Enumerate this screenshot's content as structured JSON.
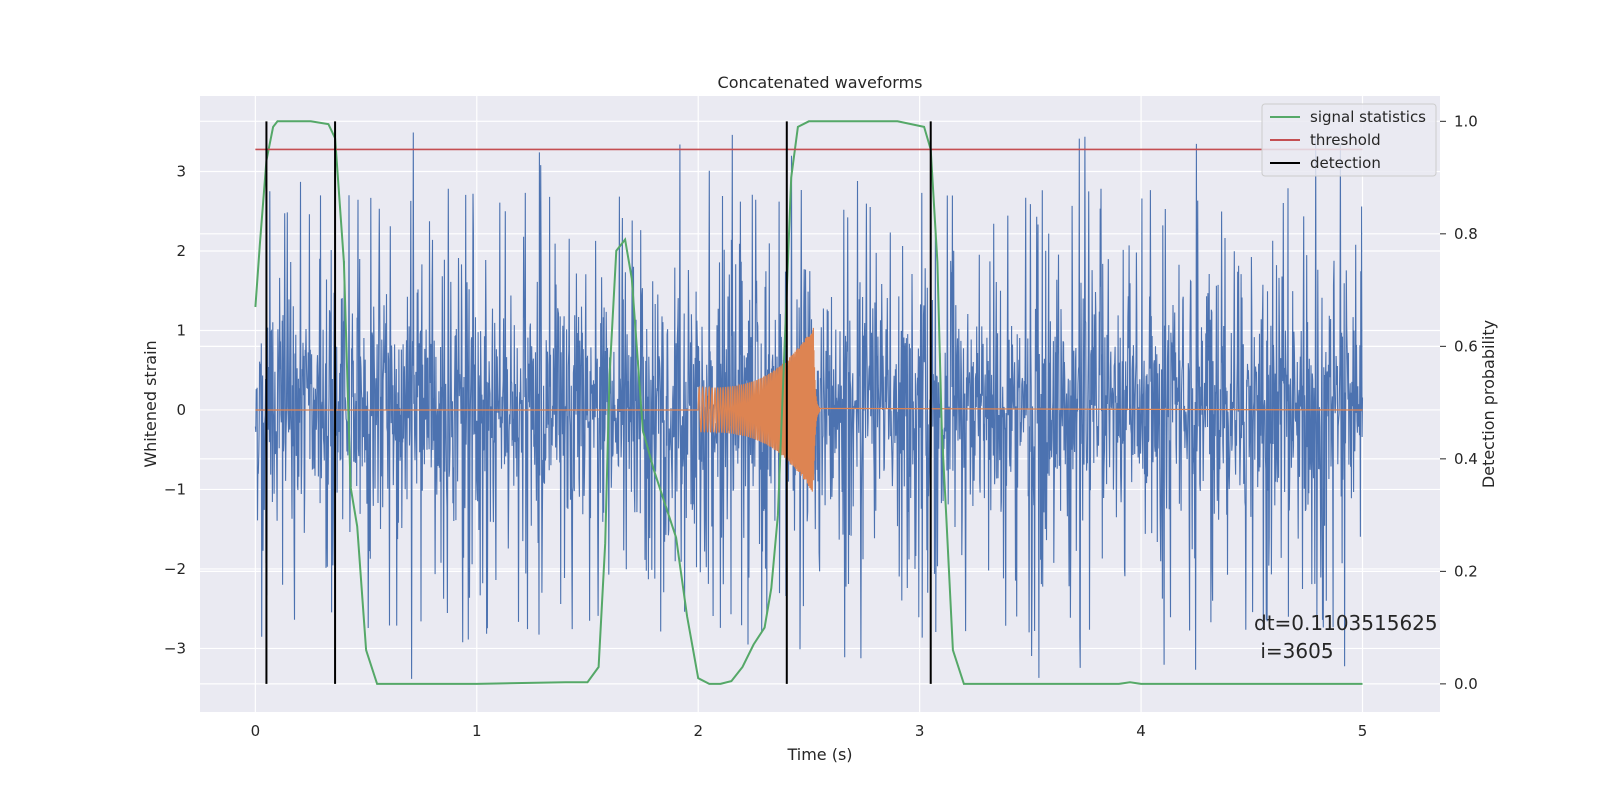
{
  "chart_data": {
    "type": "line",
    "title": "Concatenated waveforms",
    "xlabel": "Time (s)",
    "ylabel": "Whitened strain",
    "y2label": "Detection probability",
    "xlim": [
      -0.25,
      5.35
    ],
    "ylim": [
      -3.8,
      3.95
    ],
    "y2lim": [
      -0.05,
      1.045
    ],
    "xticks": [
      0,
      1,
      2,
      3,
      4,
      5
    ],
    "yticks": [
      -3,
      -2,
      -1,
      0,
      1,
      2,
      3
    ],
    "y2ticks": [
      0.0,
      0.2,
      0.4,
      0.6,
      0.8,
      1.0
    ],
    "xtick_labels": [
      "0",
      "1",
      "2",
      "3",
      "4",
      "5"
    ],
    "ytick_labels": [
      "−3",
      "−2",
      "−1",
      "0",
      "1",
      "2",
      "3"
    ],
    "y2tick_labels": [
      "0.0",
      "0.2",
      "0.4",
      "0.6",
      "0.8",
      "1.0"
    ],
    "grid": true,
    "legend_position": "top-right",
    "colors": {
      "background": "#eaeaf2",
      "grid": "#ffffff",
      "strain": "#4c72b0",
      "template": "#dd8452",
      "signal_statistics": "#55a868",
      "threshold": "#c44e52",
      "detection": "#000000"
    },
    "noise": {
      "x_range": [
        0,
        5
      ],
      "band": 0.75,
      "max_abs": 3.55
    },
    "template": {
      "start": 2.0,
      "merger": 2.52,
      "ringdown_end": 2.55,
      "peak_amplitude": 1.05
    },
    "threshold": {
      "name": "threshold",
      "value": 0.95,
      "x_range": [
        0,
        5
      ]
    },
    "detections": {
      "name": "detection",
      "x": [
        0.05,
        0.36,
        2.4,
        3.05
      ],
      "prob_range": [
        0.0,
        1.0
      ]
    },
    "signal_statistics": {
      "name": "signal statistics",
      "x": [
        0.0,
        0.02,
        0.05,
        0.08,
        0.1,
        0.15,
        0.25,
        0.33,
        0.36,
        0.4,
        0.43,
        0.46,
        0.5,
        0.55,
        0.6,
        1.0,
        1.4,
        1.5,
        1.55,
        1.58,
        1.6,
        1.63,
        1.67,
        1.7,
        1.75,
        1.8,
        1.85,
        1.9,
        1.95,
        2.0,
        2.05,
        2.1,
        2.15,
        2.2,
        2.25,
        2.3,
        2.33,
        2.36,
        2.39,
        2.42,
        2.45,
        2.5,
        2.9,
        3.02,
        3.05,
        3.08,
        3.1,
        3.12,
        3.15,
        3.2,
        3.5,
        3.9,
        3.95,
        4.0,
        4.5,
        5.0
      ],
      "values": [
        0.67,
        0.78,
        0.93,
        0.99,
        1.0,
        1.0,
        1.0,
        0.995,
        0.97,
        0.75,
        0.35,
        0.28,
        0.06,
        0.0,
        0.0,
        0.0,
        0.003,
        0.003,
        0.03,
        0.25,
        0.55,
        0.77,
        0.79,
        0.72,
        0.45,
        0.38,
        0.32,
        0.26,
        0.12,
        0.01,
        0.0,
        0.0,
        0.005,
        0.03,
        0.07,
        0.1,
        0.17,
        0.3,
        0.6,
        0.9,
        0.99,
        1.0,
        1.0,
        0.99,
        0.95,
        0.75,
        0.45,
        0.3,
        0.06,
        0.0,
        0.0,
        0.0,
        0.003,
        0.0,
        0.0,
        0.0
      ]
    },
    "legend": [
      {
        "label": "signal statistics",
        "color": "#55a868"
      },
      {
        "label": "threshold",
        "color": "#c44e52"
      },
      {
        "label": "detection",
        "color": "#000000"
      }
    ],
    "annotation": {
      "line1": "dt=0.1103515625",
      "line2": " i=3605"
    }
  }
}
